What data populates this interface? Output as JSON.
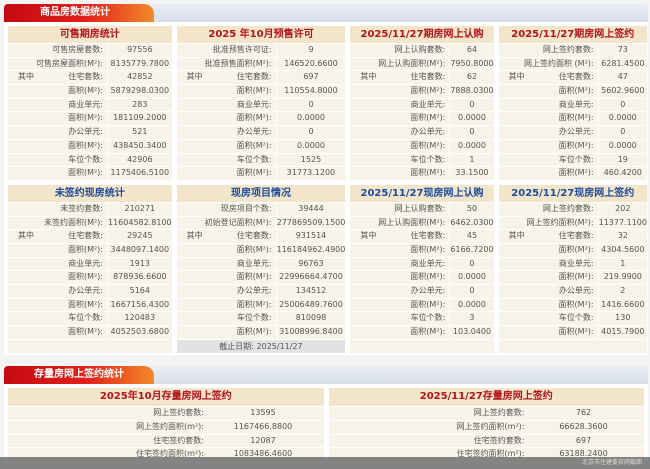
{
  "section1": {
    "title": "商品房数据统计"
  },
  "section2": {
    "title": "存量房网上签约统计"
  },
  "prefix": "其中",
  "cards": [
    {
      "title": "可售期房统计",
      "color": "red",
      "rows": [
        [
          "可售房屋套数:",
          "97556"
        ],
        [
          "可售房屋面积(M²):",
          "8135779.7800"
        ],
        [
          "住宅套数:",
          "42852",
          1
        ],
        [
          "面积(M²):",
          "5879298.0300"
        ],
        [
          "商业单元:",
          "283"
        ],
        [
          "面积(M²):",
          "181109.2000"
        ],
        [
          "办公单元:",
          "521"
        ],
        [
          "面积(M²):",
          "438450.3400"
        ],
        [
          "车位个数:",
          "42906"
        ],
        [
          "面积(M²):",
          "1175406.5100"
        ]
      ]
    },
    {
      "title": "2025 年10月预售许可",
      "color": "red",
      "rows": [
        [
          "批准预售许可证:",
          "9"
        ],
        [
          "批准预售面积(M²):",
          "146520.6600"
        ],
        [
          "住宅套数:",
          "697",
          1
        ],
        [
          "面积(M²):",
          "110554.8000"
        ],
        [
          "商业单元:",
          "0"
        ],
        [
          "面积(M²):",
          "0.0000"
        ],
        [
          "办公单元:",
          "0"
        ],
        [
          "面积(M²):",
          "0.0000"
        ],
        [
          "车位个数:",
          "1525"
        ],
        [
          "面积(M²):",
          "31773.1200"
        ]
      ]
    },
    {
      "title": "2025/11/27期房网上认购",
      "color": "red",
      "rows": [
        [
          "网上认购套数:",
          "64"
        ],
        [
          "网上认购面积(M²):",
          "7950.8000"
        ],
        [
          "住宅套数:",
          "62",
          1
        ],
        [
          "面积(M²):",
          "7888.0300"
        ],
        [
          "商业单元:",
          "0"
        ],
        [
          "面积(M²):",
          "0.0000"
        ],
        [
          "办公单元:",
          "0"
        ],
        [
          "面积(M²):",
          "0.0000"
        ],
        [
          "车位个数:",
          "1"
        ],
        [
          "面积(M²):",
          "33.1500"
        ]
      ]
    },
    {
      "title": "2025/11/27期房网上签约",
      "color": "red",
      "rows": [
        [
          "网上签约套数:",
          "73"
        ],
        [
          "网上签约面积 (M²):",
          "6281.4500"
        ],
        [
          "住宅套数:",
          "47",
          1
        ],
        [
          "面积(M²):",
          "5602.9600"
        ],
        [
          "商业单元:",
          "0"
        ],
        [
          "面积(M²):",
          "0.0000"
        ],
        [
          "办公单元:",
          "0"
        ],
        [
          "面积(M²):",
          "0.0000"
        ],
        [
          "车位个数:",
          "19"
        ],
        [
          "面积(M²):",
          "460.4200"
        ]
      ]
    },
    {
      "title": "未签约现房统计",
      "color": "blue",
      "rows": [
        [
          "未签约套数:",
          "210271"
        ],
        [
          "未签约面积(M²):",
          "11604582.8100"
        ],
        [
          "住宅套数:",
          "29245",
          1
        ],
        [
          "面积(M²):",
          "3448097.1400"
        ],
        [
          "商业单元:",
          "1913"
        ],
        [
          "面积(M²):",
          "878936.6600"
        ],
        [
          "办公单元:",
          "5164"
        ],
        [
          "面积(M²):",
          "1667156.4300"
        ],
        [
          "车位个数:",
          "120483"
        ],
        [
          "面积(M²):",
          "4052503.6800"
        ]
      ]
    },
    {
      "title": "现房项目情况",
      "color": "blue",
      "rows": [
        [
          "现房项目个数:",
          "39444"
        ],
        [
          "初始登记面积(M²):",
          "277869509.1500"
        ],
        [
          "住宅套数:",
          "931514",
          1
        ],
        [
          "面积(M²):",
          "116184962.4900"
        ],
        [
          "商业单元:",
          "96763"
        ],
        [
          "面积(M²):",
          "22996664.4700"
        ],
        [
          "办公单元:",
          "134512"
        ],
        [
          "面积(M²):",
          "25006489.7600"
        ],
        [
          "车位个数:",
          "810098"
        ],
        [
          "面积(M²):",
          "31008996.8400"
        ]
      ],
      "footer": "截止日期:  2025/11/27"
    },
    {
      "title": "2025/11/27现房网上认购",
      "color": "blue",
      "rows": [
        [
          "网上认购套数:",
          "50"
        ],
        [
          "网上认购面积(M²):",
          "6462.0300"
        ],
        [
          "住宅套数:",
          "45",
          1
        ],
        [
          "面积(M²):",
          "6166.7200"
        ],
        [
          "商业单元:",
          "0"
        ],
        [
          "面积(M²):",
          "0.0000"
        ],
        [
          "办公单元:",
          "0"
        ],
        [
          "面积(M²):",
          "0.0000"
        ],
        [
          "车位个数:",
          "3"
        ],
        [
          "面积(M²):",
          "103.0400"
        ]
      ]
    },
    {
      "title": "2025/11/27现房网上签约",
      "color": "blue",
      "rows": [
        [
          "网上签约套数:",
          "202"
        ],
        [
          "网上签约面积(M²):",
          "11377.1100"
        ],
        [
          "住宅套数:",
          "32",
          1
        ],
        [
          "面积(M²):",
          "4304.5600"
        ],
        [
          "商业单元:",
          "1"
        ],
        [
          "面积(M²):",
          "219.9900"
        ],
        [
          "办公单元:",
          "2"
        ],
        [
          "面积(M²):",
          "1416.6600"
        ],
        [
          "车位个数:",
          "130"
        ],
        [
          "面积(M²):",
          "4015.7900"
        ]
      ]
    }
  ],
  "cards2": [
    {
      "title": "2025年10月存量房网上签约",
      "rows": [
        [
          "网上签约套数:",
          "13595"
        ],
        [
          "网上签约面积(m²):",
          "1167466.8800"
        ],
        [
          "住宅签约套数:",
          "12087"
        ],
        [
          "住宅签约面积(m²):",
          "1083486.4600"
        ]
      ]
    },
    {
      "title": "2025/11/27存量房网上签约",
      "rows": [
        [
          "网上签约套数:",
          "762"
        ],
        [
          "网上签约面积(m²):",
          "66628.3600"
        ],
        [
          "住宅签约套数:",
          "697"
        ],
        [
          "住宅签约面积(m²):",
          "63188.2400"
        ]
      ]
    }
  ],
  "watermark": "北京市住建委官网截图",
  "colors": {
    "red": "#b3141c",
    "blue": "#1e4c9e",
    "tab": "#d8161a"
  }
}
